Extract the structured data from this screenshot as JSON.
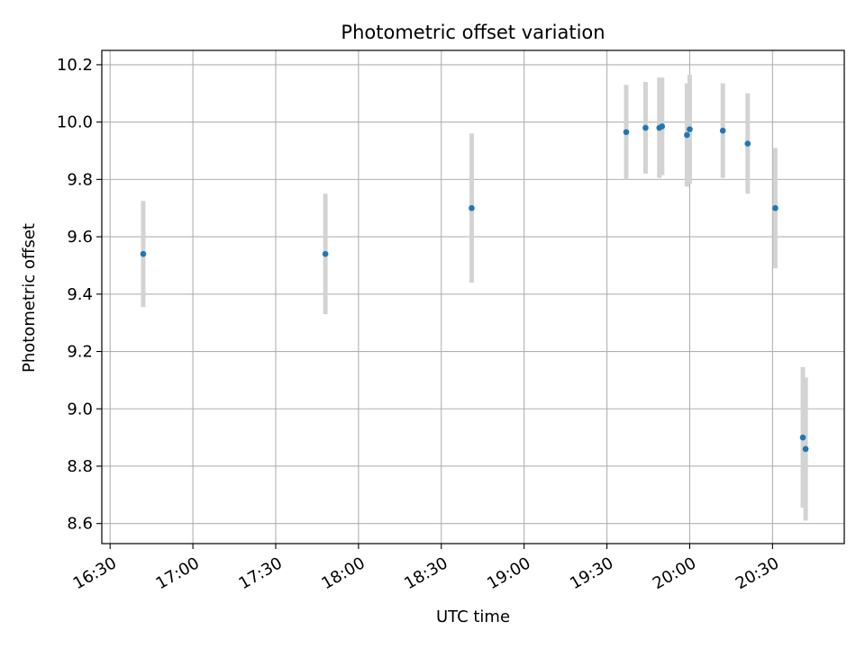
{
  "chart_data": {
    "type": "scatter",
    "title": "Photometric offset variation",
    "xlabel": "UTC time",
    "ylabel": "Photometric offset",
    "x_ticks": [
      "16:30",
      "17:00",
      "17:30",
      "18:00",
      "18:30",
      "19:00",
      "19:30",
      "20:00",
      "20:30"
    ],
    "y_ticks": [
      "8.6",
      "8.8",
      "9.0",
      "9.2",
      "9.4",
      "9.6",
      "9.8",
      "10.0",
      "10.2"
    ],
    "xlim": [
      "16:27",
      "20:56"
    ],
    "ylim": [
      8.53,
      10.25
    ],
    "grid": true,
    "colors": {
      "point": "#1f77b4",
      "errorbar": "#d3d3d3",
      "grid": "#b0b0b0"
    },
    "points": [
      {
        "x": "16:42",
        "y": 9.54,
        "err": 0.185
      },
      {
        "x": "17:48",
        "y": 9.54,
        "err": 0.21
      },
      {
        "x": "18:41",
        "y": 9.7,
        "err": 0.26
      },
      {
        "x": "19:37",
        "y": 9.965,
        "err": 0.165
      },
      {
        "x": "19:44",
        "y": 9.98,
        "err": 0.16
      },
      {
        "x": "19:49",
        "y": 9.98,
        "err": 0.175
      },
      {
        "x": "19:50",
        "y": 9.985,
        "err": 0.17
      },
      {
        "x": "19:59",
        "y": 9.955,
        "err": 0.18
      },
      {
        "x": "20:00",
        "y": 9.975,
        "err": 0.19
      },
      {
        "x": "20:12",
        "y": 9.97,
        "err": 0.165
      },
      {
        "x": "20:21",
        "y": 9.925,
        "err": 0.175
      },
      {
        "x": "20:31",
        "y": 9.7,
        "err": 0.21
      },
      {
        "x": "20:41",
        "y": 8.9,
        "err": 0.245
      },
      {
        "x": "20:42",
        "y": 8.86,
        "err": 0.25
      }
    ]
  }
}
